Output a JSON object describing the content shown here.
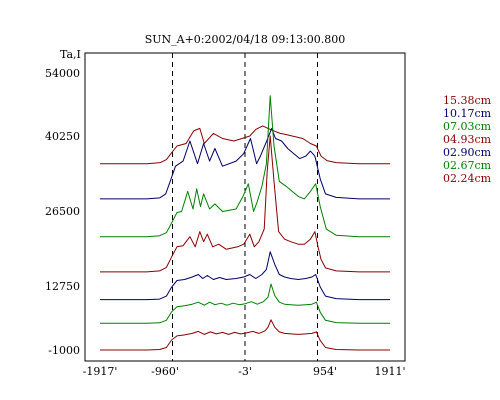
{
  "chart_data": {
    "type": "line",
    "title": "SUN_A+0:2002/04/18 09:13:00.800",
    "ylabel": "Ta,I",
    "xlabel": "",
    "x_ticks": [
      "-1917'",
      "-960'",
      "-3'",
      "954'",
      "1911'"
    ],
    "y_ticks": [
      "54000",
      "40250",
      "26500",
      "12750",
      "-1000"
    ],
    "xlim": [
      -1917,
      1911
    ],
    "ylim": [
      -1000,
      54000
    ],
    "vlines": [
      -960,
      -3,
      954
    ],
    "grid": false,
    "legend_position": "right",
    "series": [
      {
        "name": "15.38cm",
        "color": "#8b0000",
        "offset": 36000,
        "x": [
          -1917,
          -1300,
          -1120,
          -1040,
          -980,
          -900,
          -780,
          -680,
          -600,
          -540,
          -420,
          -300,
          -150,
          60,
          140,
          230,
          300,
          380,
          460,
          530,
          620,
          760,
          860,
          940,
          1000,
          1080,
          1200,
          1500,
          1911
        ],
        "y": [
          0,
          0,
          200,
          800,
          2000,
          3500,
          4000,
          6500,
          7000,
          4000,
          6000,
          5000,
          4500,
          5500,
          6800,
          7500,
          7000,
          6500,
          6000,
          5800,
          5500,
          5000,
          4000,
          3500,
          1500,
          600,
          200,
          0,
          0
        ]
      },
      {
        "name": "10.17cm",
        "color": "#00006b",
        "offset": 29000,
        "x": [
          -1917,
          -1300,
          -1130,
          -1050,
          -990,
          -920,
          -820,
          -730,
          -630,
          -550,
          -470,
          -400,
          -300,
          -120,
          -20,
          70,
          150,
          200,
          270,
          350,
          400,
          480,
          560,
          640,
          720,
          800,
          860,
          920,
          990,
          1060,
          1200,
          1500,
          1911
        ],
        "y": [
          0,
          0,
          200,
          1000,
          3500,
          6500,
          7500,
          11500,
          7000,
          11000,
          7500,
          10000,
          6500,
          7500,
          9000,
          12000,
          7000,
          8500,
          11000,
          14000,
          12000,
          11500,
          10000,
          9000,
          8000,
          8500,
          9500,
          8500,
          4000,
          1000,
          300,
          0,
          0
        ]
      },
      {
        "name": "07.03cm",
        "color": "#008000",
        "offset": 21500,
        "x": [
          -1917,
          -1300,
          -1130,
          -1040,
          -980,
          -900,
          -840,
          -760,
          -690,
          -640,
          -590,
          -550,
          -470,
          -400,
          -300,
          -120,
          -30,
          40,
          110,
          160,
          220,
          280,
          330,
          380,
          450,
          540,
          620,
          700,
          780,
          860,
          930,
          990,
          1070,
          1200,
          1500,
          1911
        ],
        "y": [
          0,
          0,
          200,
          800,
          2500,
          4800,
          5000,
          9000,
          5500,
          9500,
          6000,
          8500,
          5500,
          6500,
          5000,
          5500,
          8000,
          10500,
          5000,
          7000,
          10000,
          14500,
          28000,
          18000,
          11000,
          10000,
          9000,
          8000,
          7500,
          9000,
          10500,
          6000,
          1500,
          300,
          0,
          0
        ]
      },
      {
        "name": "04.93cm",
        "color": "#8b0000",
        "offset": 14500,
        "x": [
          -1917,
          -1300,
          -1130,
          -1040,
          -970,
          -900,
          -820,
          -730,
          -660,
          -600,
          -550,
          -500,
          -430,
          -350,
          -250,
          -100,
          -20,
          60,
          120,
          180,
          250,
          290,
          330,
          380,
          440,
          520,
          600,
          700,
          780,
          860,
          920,
          960,
          1000,
          1060,
          1200,
          1500,
          1911
        ],
        "y": [
          0,
          0,
          200,
          900,
          3000,
          5000,
          5200,
          7000,
          5000,
          8000,
          6000,
          7500,
          5000,
          5500,
          4500,
          5000,
          5500,
          7500,
          5000,
          6000,
          8500,
          20000,
          27000,
          18000,
          8000,
          6500,
          6000,
          5500,
          5500,
          6500,
          8000,
          5000,
          2500,
          800,
          200,
          0,
          0
        ]
      },
      {
        "name": "02.90cm",
        "color": "#00006b",
        "offset": 9000,
        "x": [
          -1917,
          -1300,
          -1130,
          -1040,
          -970,
          -900,
          -800,
          -700,
          -620,
          -560,
          -500,
          -420,
          -340,
          -250,
          -120,
          -20,
          60,
          140,
          220,
          280,
          330,
          390,
          450,
          520,
          600,
          700,
          800,
          880,
          930,
          990,
          1060,
          1200,
          1500,
          1911
        ],
        "y": [
          0,
          0,
          100,
          700,
          2500,
          3800,
          4000,
          4500,
          5000,
          4200,
          4800,
          4000,
          4400,
          4000,
          4200,
          4500,
          5000,
          4200,
          5000,
          6000,
          9500,
          7000,
          5000,
          4500,
          4200,
          4000,
          4200,
          4500,
          5000,
          2500,
          700,
          200,
          0,
          0
        ]
      },
      {
        "name": "02.67cm",
        "color": "#008000",
        "offset": 4300,
        "x": [
          -1917,
          -1300,
          -1130,
          -1040,
          -970,
          -900,
          -800,
          -700,
          -620,
          -540,
          -470,
          -400,
          -320,
          -240,
          -160,
          -80,
          0,
          80,
          160,
          240,
          300,
          340,
          390,
          450,
          520,
          600,
          700,
          800,
          880,
          940,
          990,
          1060,
          1200,
          1500,
          1911
        ],
        "y": [
          0,
          0,
          100,
          600,
          2300,
          3300,
          3500,
          3800,
          4200,
          3600,
          4200,
          3700,
          4000,
          3600,
          4000,
          3700,
          3900,
          4300,
          3800,
          4300,
          5200,
          7800,
          5500,
          4200,
          3800,
          3700,
          3600,
          3700,
          3800,
          4200,
          2200,
          600,
          150,
          0,
          0
        ]
      },
      {
        "name": "02.24cm",
        "color": "#8b0000",
        "offset": -1000,
        "x": [
          -1917,
          -1300,
          -1130,
          -1040,
          -970,
          -900,
          -800,
          -700,
          -620,
          -540,
          -460,
          -380,
          -300,
          -220,
          -140,
          -60,
          20,
          100,
          180,
          260,
          300,
          340,
          390,
          450,
          520,
          600,
          700,
          800,
          880,
          940,
          990,
          1060,
          1200,
          1500,
          1911
        ],
        "y": [
          0,
          0,
          100,
          500,
          2000,
          2800,
          3000,
          3300,
          3700,
          3100,
          3600,
          3200,
          3500,
          3100,
          3500,
          3200,
          3400,
          3700,
          3300,
          3800,
          4500,
          6000,
          4500,
          3600,
          3300,
          3200,
          3100,
          3200,
          3300,
          3600,
          1900,
          500,
          100,
          0,
          0
        ]
      }
    ]
  }
}
